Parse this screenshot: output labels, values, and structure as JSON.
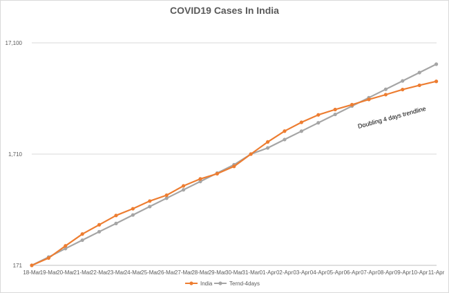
{
  "colors": {
    "india": "#ED7D31",
    "trend": "#A5A5A5",
    "grid": "#D9D9D9",
    "axis": "#BFBFBF"
  },
  "chart_data": {
    "type": "line",
    "title": "COVID19 Cases In India",
    "xlabel": "",
    "ylabel": "",
    "y_scale": "log",
    "ylim": [
      171,
      27000
    ],
    "y_ticks": [
      171,
      1710,
      17100
    ],
    "y_tick_labels": [
      "171",
      "1,710",
      "17,100"
    ],
    "categories": [
      "18-Mar",
      "19-Mar",
      "20-Mar",
      "21-Mar",
      "22-Mar",
      "23-Mar",
      "24-Mar",
      "25-Mar",
      "26-Mar",
      "27-Mar",
      "28-Mar",
      "29-Mar",
      "30-Mar",
      "31-Mar",
      "01-Apr",
      "02-Apr",
      "03-Apr",
      "04-Apr",
      "05-Apr",
      "06-Apr",
      "07-Apr",
      "08-Apr",
      "09-Apr",
      "10-Apr",
      "11-Apr"
    ],
    "series": [
      {
        "name": "India",
        "color": "#ED7D31",
        "values": [
          171,
          199,
          256,
          327,
          396,
          480,
          552,
          647,
          730,
          885,
          1023,
          1139,
          1326,
          1710,
          2200,
          2750,
          3300,
          3850,
          4300,
          4750,
          5300,
          5850,
          6500,
          7100,
          7700
        ]
      },
      {
        "name": "Ternd-4days",
        "color": "#A5A5A5",
        "values": [
          171,
          203,
          242,
          288,
          343,
          407,
          485,
          577,
          686,
          816,
          970,
          1154,
          1372,
          1710,
          1942,
          2310,
          2747,
          3267,
          3885,
          4620,
          5495,
          6535,
          7771,
          9242,
          10991
        ]
      }
    ],
    "legend_position": "bottom",
    "annotation": "Doubling 4 days trendline"
  }
}
